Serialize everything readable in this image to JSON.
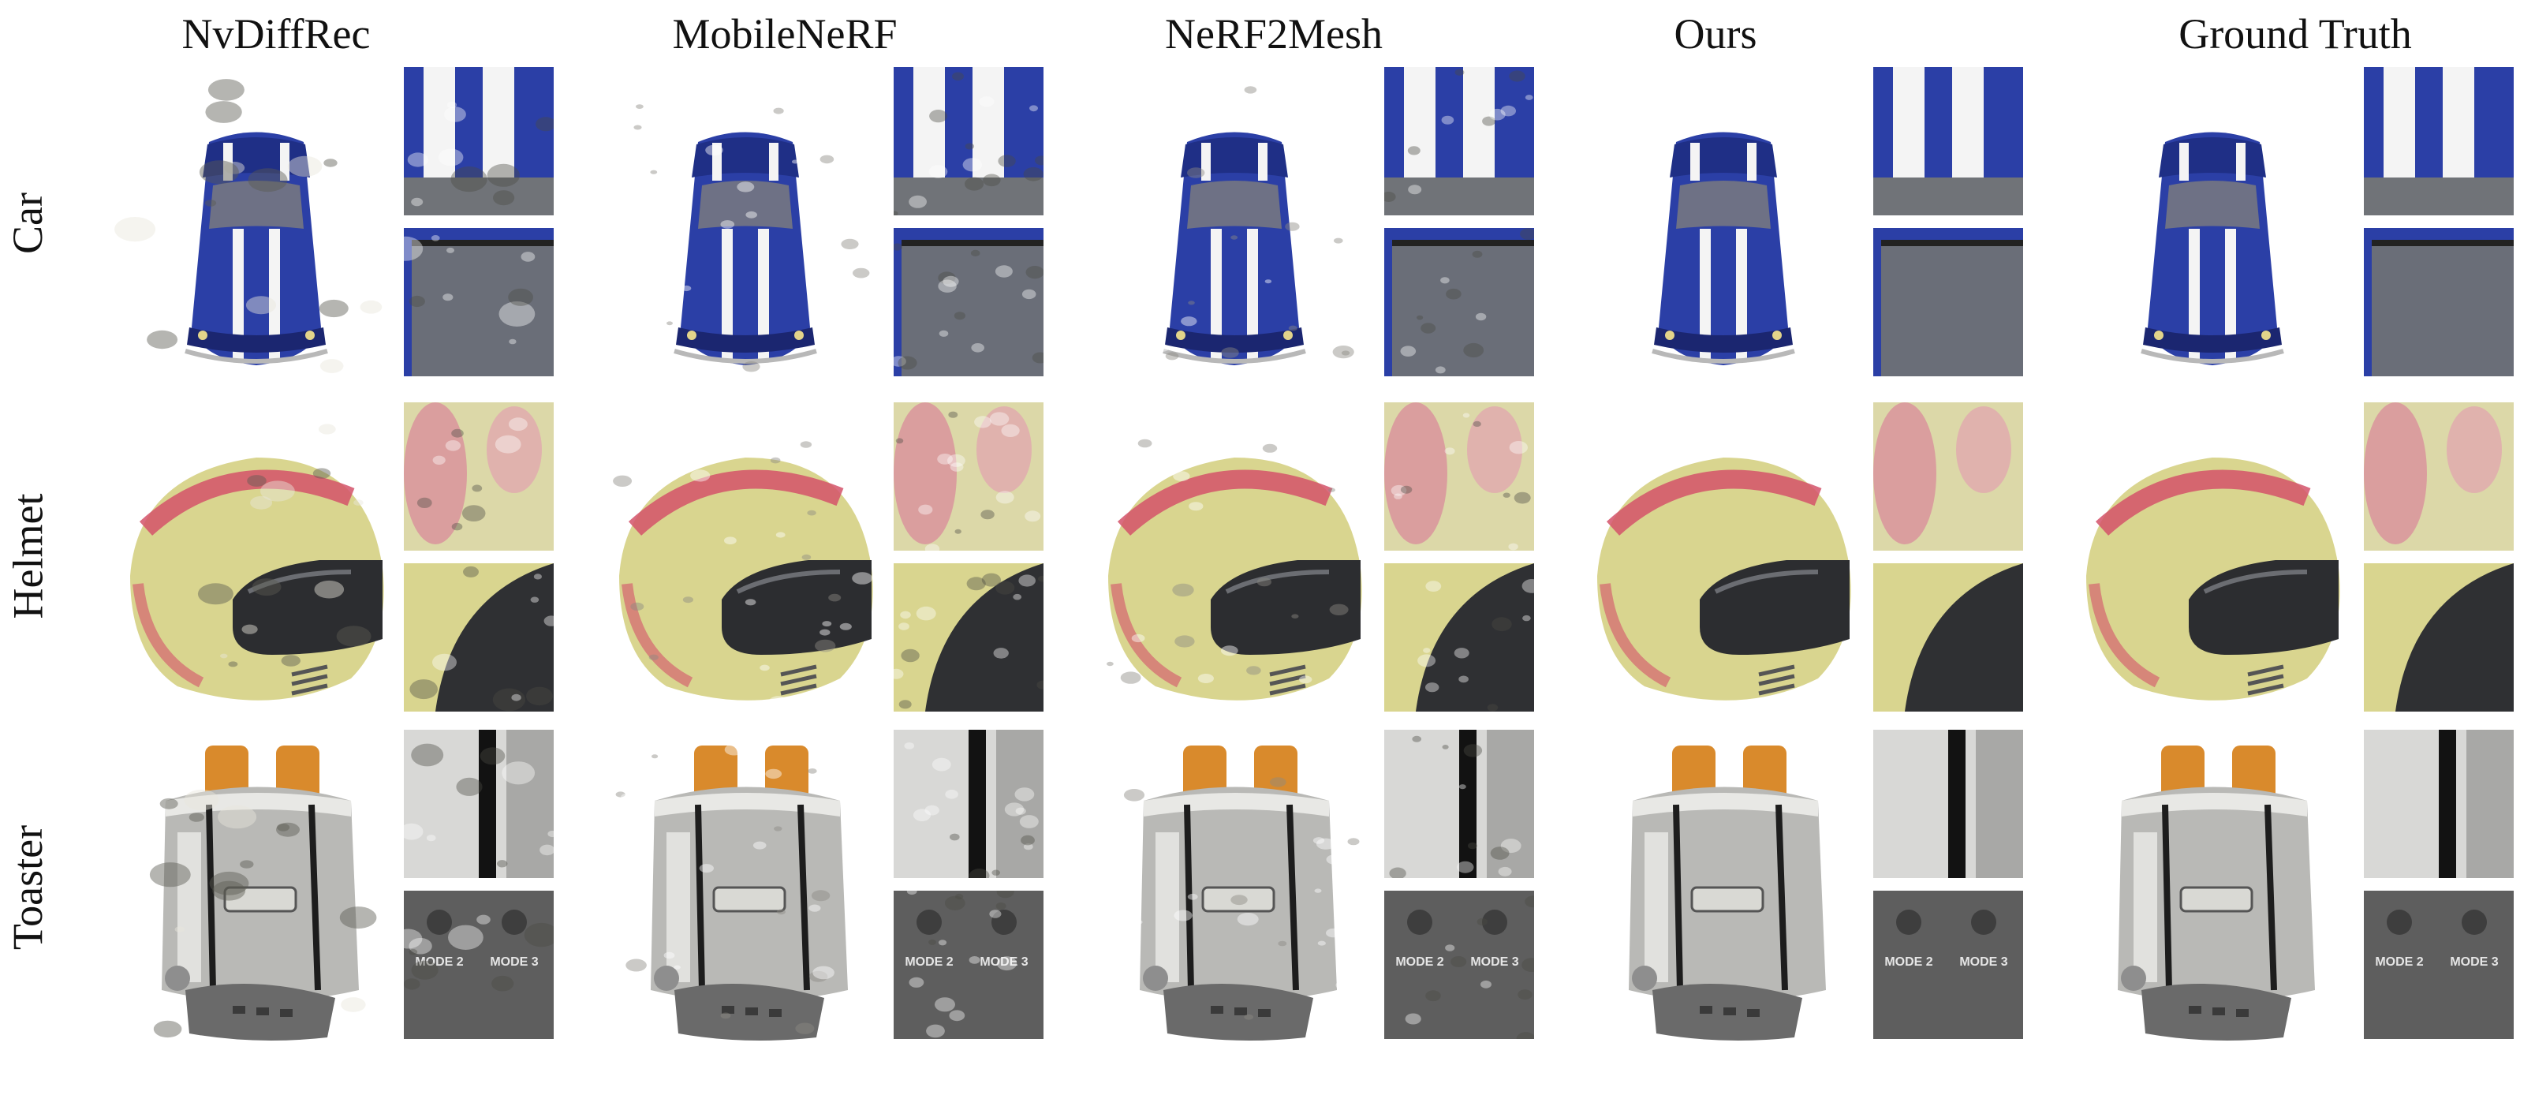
{
  "columns": [
    {
      "label": "NvDiffRec",
      "quality": "artifacts"
    },
    {
      "label": "MobileNeRF",
      "quality": "noisy"
    },
    {
      "label": "NeRF2Mesh",
      "quality": "mottled"
    },
    {
      "label": "Ours",
      "quality": "clean"
    },
    {
      "label": "Ground Truth",
      "quality": "clean"
    }
  ],
  "rows": [
    {
      "label": "Car",
      "object": "car"
    },
    {
      "label": "Helmet",
      "object": "helmet"
    },
    {
      "label": "Toaster",
      "object": "toaster"
    }
  ],
  "toaster_crop_text": {
    "left": "MODE 2",
    "right": "MODE 3"
  },
  "colors": {
    "car_blue": "#2b3fa6",
    "helmet_yellow": "#d9d58f",
    "helmet_red": "#d4526a",
    "toast": "#d98a2c",
    "chrome": "#b9b9b6"
  }
}
